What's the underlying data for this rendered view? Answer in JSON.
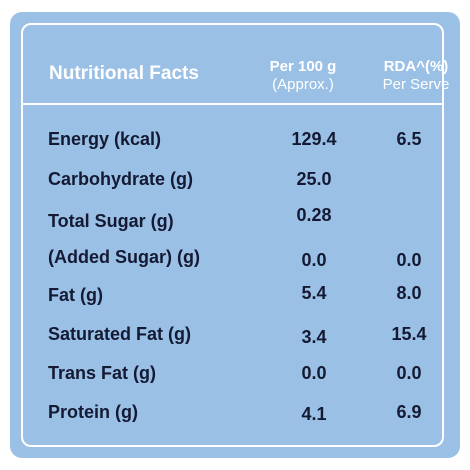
{
  "header": {
    "title": "Nutritional Facts",
    "per_label": "Per 100 g",
    "per_sub": "(Approx.)",
    "rda_label": "RDA^(%)",
    "rda_sub": "Per Serve"
  },
  "rows": [
    {
      "label": "Energy (kcal)",
      "per": "129.4",
      "rda": "6.5"
    },
    {
      "label": "Carbohydrate (g)",
      "per": "25.0",
      "rda": ""
    },
    {
      "label": "Total Sugar (g)",
      "per": "0.28",
      "rda": ""
    },
    {
      "label": "(Added Sugar) (g)",
      "per": "0.0",
      "rda": "0.0"
    },
    {
      "label": "Fat (g)",
      "per": "5.4",
      "rda": "8.0"
    },
    {
      "label": "Saturated Fat (g)",
      "per": "3.4",
      "rda": "15.4"
    },
    {
      "label": "Trans Fat (g)",
      "per": "0.0",
      "rda": "0.0"
    },
    {
      "label": "Protein (g)",
      "per": "4.1",
      "rda": "6.9"
    }
  ],
  "colors": {
    "panel": "#9bc0e6",
    "text": "#141a33",
    "header_text": "#ffffff"
  }
}
